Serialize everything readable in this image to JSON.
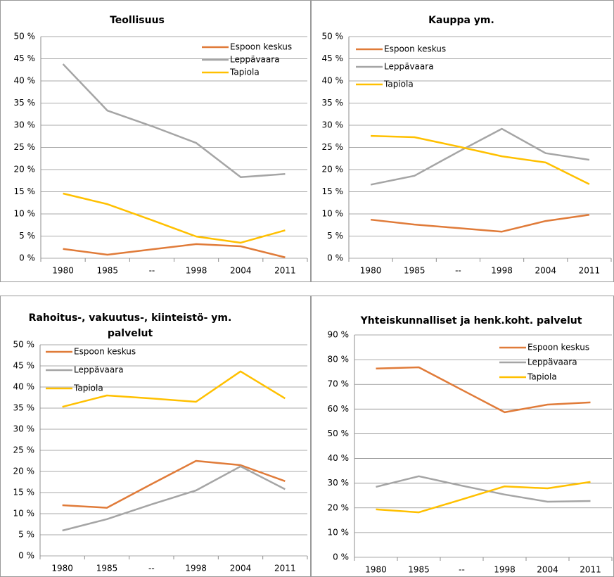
{
  "chart_data": [
    {
      "type": "line",
      "title": "Teollisuus",
      "categories": [
        "1980",
        "1985",
        "--",
        "1998",
        "2004",
        "2011"
      ],
      "series": [
        {
          "name": "Espoon keskus",
          "color": "#e07b39",
          "values": [
            2.1,
            0.8,
            2.0,
            3.2,
            2.7,
            0.2
          ]
        },
        {
          "name": "Leppävaara",
          "color": "#a5a5a5",
          "values": [
            43.8,
            33.3,
            29.8,
            26.0,
            18.3,
            19.0
          ]
        },
        {
          "name": "Tapiola",
          "color": "#ffc000",
          "values": [
            14.6,
            12.2,
            8.6,
            4.9,
            3.5,
            6.3
          ]
        }
      ],
      "ylim": [
        0,
        50
      ],
      "yticks": [
        {
          "value": 0,
          "label": "0 %"
        },
        {
          "value": 5,
          "label": "5 %"
        },
        {
          "value": 10,
          "label": "10 %"
        },
        {
          "value": 15,
          "label": "15 %"
        },
        {
          "value": 20,
          "label": "20 %"
        },
        {
          "value": 25,
          "label": "25 %"
        },
        {
          "value": 30,
          "label": "30 %"
        },
        {
          "value": 35,
          "label": "35 %"
        },
        {
          "value": 40,
          "label": "40 %"
        },
        {
          "value": 45,
          "label": "45 %"
        },
        {
          "value": 50,
          "label": "50 %"
        }
      ],
      "grid": true,
      "legend": "top-right"
    },
    {
      "type": "line",
      "title": "Kauppa ym.",
      "categories": [
        "1980",
        "1985",
        "--",
        "1998",
        "2004",
        "2011"
      ],
      "series": [
        {
          "name": "Espoon keskus",
          "color": "#e07b39",
          "values": [
            8.7,
            7.6,
            6.8,
            6.0,
            8.4,
            9.8
          ]
        },
        {
          "name": "Leppävaara",
          "color": "#a5a5a5",
          "values": [
            16.6,
            18.6,
            24.0,
            29.2,
            23.7,
            22.2
          ]
        },
        {
          "name": "Tapiola",
          "color": "#ffc000",
          "values": [
            27.6,
            27.3,
            25.2,
            23.0,
            21.6,
            16.7
          ]
        }
      ],
      "ylim": [
        0,
        50
      ],
      "yticks": [
        {
          "value": 0,
          "label": "0 %"
        },
        {
          "value": 5,
          "label": "5 %"
        },
        {
          "value": 10,
          "label": "10 %"
        },
        {
          "value": 15,
          "label": "15 %"
        },
        {
          "value": 20,
          "label": "20 %"
        },
        {
          "value": 25,
          "label": "25 %"
        },
        {
          "value": 30,
          "label": "30 %"
        },
        {
          "value": 35,
          "label": "35 %"
        },
        {
          "value": 40,
          "label": "40 %"
        },
        {
          "value": 45,
          "label": "45 %"
        },
        {
          "value": 50,
          "label": "50 %"
        }
      ],
      "grid": true,
      "legend": "top-left"
    },
    {
      "type": "line",
      "title": "Rahoitus-, vakuutus-, kiinteistö- ym. palvelut",
      "categories": [
        "1980",
        "1985",
        "--",
        "1998",
        "2004",
        "2011"
      ],
      "series": [
        {
          "name": "Espoon keskus",
          "color": "#e07b39",
          "values": [
            12.0,
            11.4,
            17.0,
            22.5,
            21.5,
            17.7
          ]
        },
        {
          "name": "Leppävaara",
          "color": "#a5a5a5",
          "values": [
            6.0,
            8.7,
            12.2,
            15.5,
            21.2,
            15.8
          ]
        },
        {
          "name": "Tapiola",
          "color": "#ffc000",
          "values": [
            35.3,
            38.0,
            37.3,
            36.5,
            43.7,
            37.3
          ]
        }
      ],
      "ylim": [
        0,
        50
      ],
      "yticks": [
        {
          "value": 0,
          "label": "0 %"
        },
        {
          "value": 5,
          "label": "5 %"
        },
        {
          "value": 10,
          "label": "10 %"
        },
        {
          "value": 15,
          "label": "15 %"
        },
        {
          "value": 20,
          "label": "20 %"
        },
        {
          "value": 25,
          "label": "25 %"
        },
        {
          "value": 30,
          "label": "30 %"
        },
        {
          "value": 35,
          "label": "35 %"
        },
        {
          "value": 40,
          "label": "40 %"
        },
        {
          "value": 45,
          "label": "45 %"
        },
        {
          "value": 50,
          "label": "50 %"
        }
      ],
      "grid": true,
      "legend": "top-left"
    },
    {
      "type": "line",
      "title": "Yhteiskunnalliset ja henk.koht. palvelut",
      "categories": [
        "1980",
        "1985",
        "--",
        "1998",
        "2004",
        "2011"
      ],
      "series": [
        {
          "name": "Espoon keskus",
          "color": "#e07b39",
          "values": [
            76.4,
            76.9,
            67.8,
            58.7,
            61.8,
            62.7
          ]
        },
        {
          "name": "Leppävaara",
          "color": "#a5a5a5",
          "values": [
            28.5,
            32.8,
            29.0,
            25.4,
            22.5,
            22.8
          ]
        },
        {
          "name": "Tapiola",
          "color": "#ffc000",
          "values": [
            19.4,
            18.2,
            23.4,
            28.7,
            27.9,
            30.5
          ]
        }
      ],
      "ylim": [
        0,
        90
      ],
      "yticks": [
        {
          "value": 0,
          "label": "0 %"
        },
        {
          "value": 10,
          "label": "10 %"
        },
        {
          "value": 20,
          "label": "20 %"
        },
        {
          "value": 30,
          "label": "30 %"
        },
        {
          "value": 40,
          "label": "40 %"
        },
        {
          "value": 50,
          "label": "50 %"
        },
        {
          "value": 60,
          "label": "60 %"
        },
        {
          "value": 70,
          "label": "70 %"
        },
        {
          "value": 80,
          "label": "80 %"
        },
        {
          "value": 90,
          "label": "90 %"
        }
      ],
      "grid": true,
      "legend": "top-right"
    }
  ]
}
